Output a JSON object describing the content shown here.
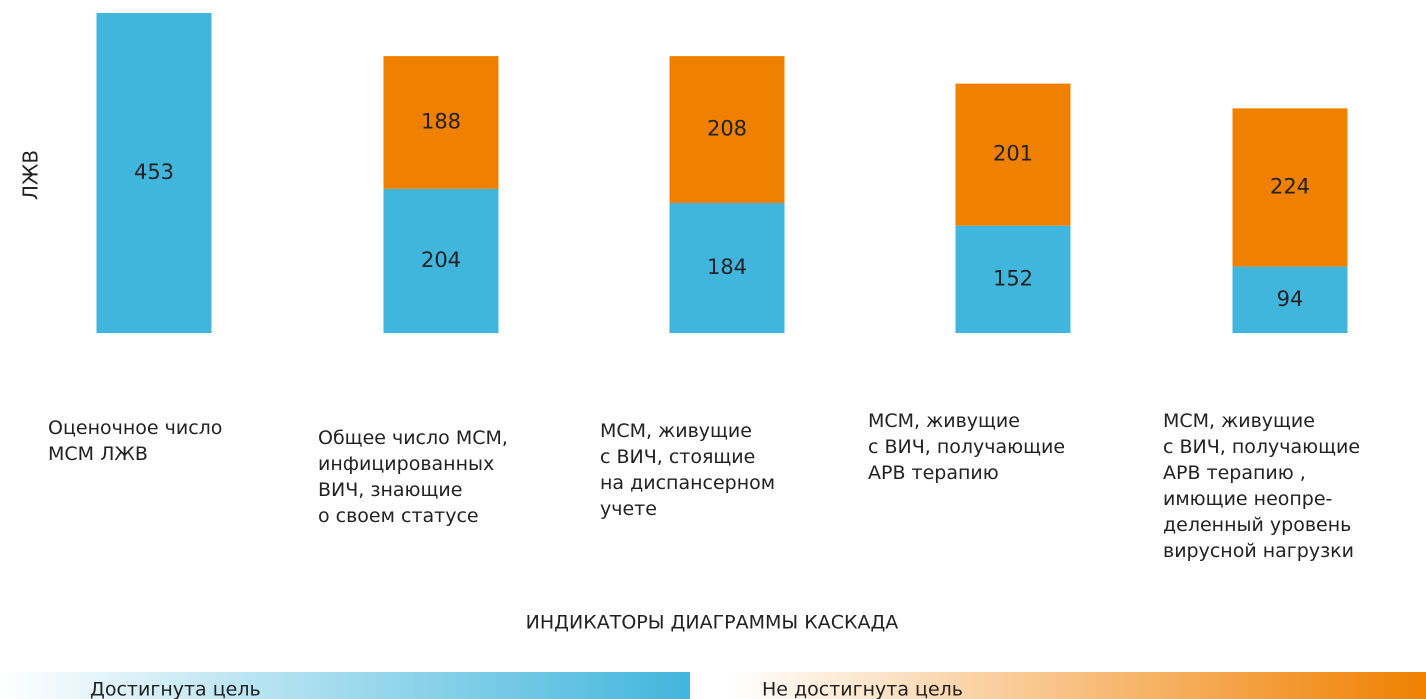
{
  "chart_data": {
    "type": "stacked_bar",
    "y_label": "ЛЖВ",
    "x_label": "ИНДИКАТОРЫ ДИАГРАММЫ КАСКАДА",
    "categories": [
      "Оценочное число\nМСМ ЛЖВ",
      "Общее число МСМ,\nинфицированных\nВИЧ, знающие\nо своем статусе",
      "МСМ, живущие\nс ВИЧ, стоящие\nна диспансерном\nучете",
      "МСМ, живущие\nс ВИЧ, получающие\nАРВ терапию",
      "МСМ, живущие\nс ВИЧ, получающие\nАРВ терапию ,\nимющие неопре-\nделенный уровень\nвирусной нагрузки"
    ],
    "series": [
      {
        "name": "Достигнута цель",
        "color": "#41b6dc",
        "values": [
          453,
          204,
          184,
          152,
          94
        ]
      },
      {
        "name": "Не достигнута цель",
        "color": "#f08000",
        "values": [
          null,
          188,
          208,
          201,
          224
        ]
      }
    ]
  }
}
